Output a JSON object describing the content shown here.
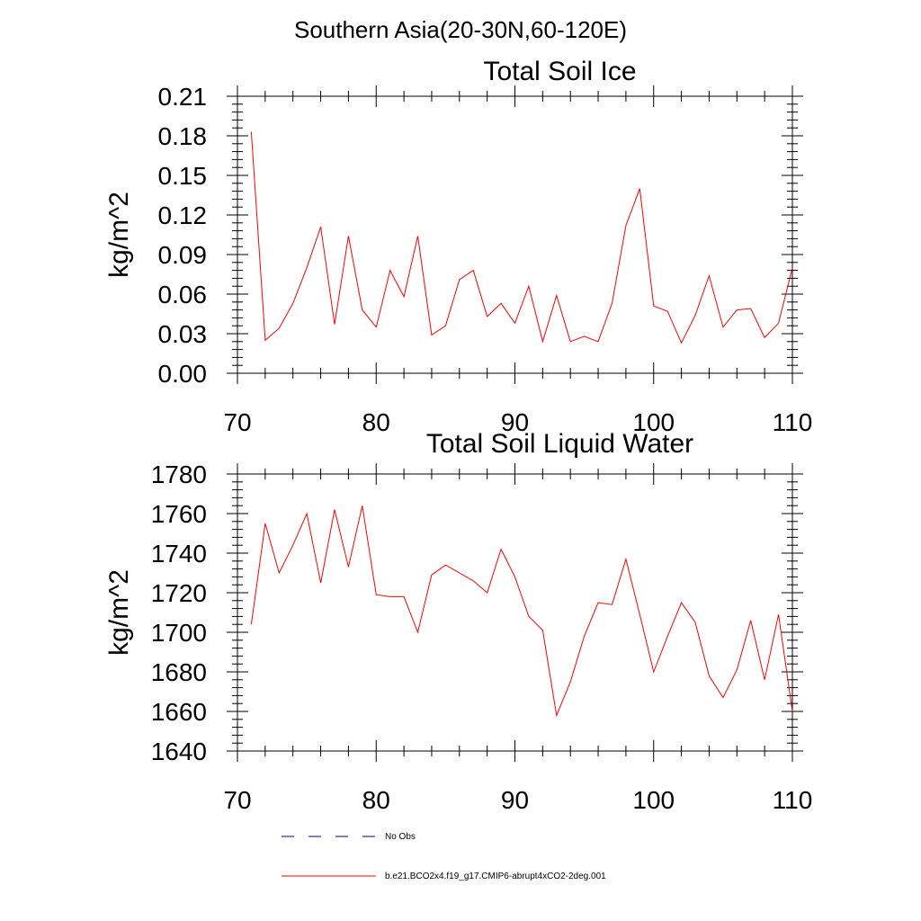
{
  "suptitle": "Southern Asia(20-30N,60-120E)",
  "colors": {
    "model": "#ff0000",
    "obs": "#000080",
    "axis": "#000000"
  },
  "legend": {
    "obs_label": "No Obs",
    "model_label": "b.e21.BCO2x4.f19_g17.CMIP6-abrupt4xCO2-2deg.001"
  },
  "chart_data": [
    {
      "type": "line",
      "title": "Total Soil Ice",
      "xlabel": "",
      "ylabel": "kg/m^2",
      "xlim": [
        70,
        110
      ],
      "ylim": [
        0,
        0.21
      ],
      "xticks": [
        70,
        80,
        90,
        100,
        110
      ],
      "xtick_labels": [
        "70",
        "80",
        "90",
        "100",
        "110"
      ],
      "yticks": [
        0,
        0.03,
        0.06,
        0.09,
        0.12,
        0.15,
        0.18,
        0.21
      ],
      "ytick_labels": [
        "0.00",
        "0.03",
        "0.06",
        "0.09",
        "0.12",
        "0.15",
        "0.18",
        "0.21"
      ],
      "series": [
        {
          "name": "b.e21.BCO2x4.f19_g17.CMIP6-abrupt4xCO2-2deg.001",
          "x": [
            71,
            72,
            73,
            74,
            75,
            76,
            77,
            78,
            79,
            80,
            81,
            82,
            83,
            84,
            85,
            86,
            87,
            88,
            89,
            90,
            91,
            92,
            93,
            94,
            95,
            96,
            97,
            98,
            99,
            100,
            101,
            102,
            103,
            104,
            105,
            106,
            107,
            108,
            109,
            110
          ],
          "values": [
            0.183,
            0.025,
            0.034,
            0.053,
            0.08,
            0.111,
            0.037,
            0.104,
            0.048,
            0.035,
            0.078,
            0.058,
            0.104,
            0.029,
            0.036,
            0.071,
            0.078,
            0.043,
            0.053,
            0.038,
            0.066,
            0.024,
            0.059,
            0.024,
            0.028,
            0.024,
            0.053,
            0.112,
            0.14,
            0.051,
            0.047,
            0.023,
            0.044,
            0.074,
            0.035,
            0.048,
            0.049,
            0.027,
            0.038,
            0.08
          ]
        }
      ]
    },
    {
      "type": "line",
      "title": "Total Soil Liquid Water",
      "xlabel": "",
      "ylabel": "kg/m^2",
      "xlim": [
        70,
        110
      ],
      "ylim": [
        1640,
        1780
      ],
      "xticks": [
        70,
        80,
        90,
        100,
        110
      ],
      "xtick_labels": [
        "70",
        "80",
        "90",
        "100",
        "110"
      ],
      "yticks": [
        1640,
        1660,
        1680,
        1700,
        1720,
        1740,
        1760,
        1780
      ],
      "ytick_labels": [
        "1640",
        "1660",
        "1680",
        "1700",
        "1720",
        "1740",
        "1760",
        "1780"
      ],
      "series": [
        {
          "name": "b.e21.BCO2x4.f19_g17.CMIP6-abrupt4xCO2-2deg.001",
          "x": [
            71,
            72,
            73,
            74,
            75,
            76,
            77,
            78,
            79,
            80,
            81,
            82,
            83,
            84,
            85,
            86,
            87,
            88,
            89,
            90,
            91,
            92,
            93,
            94,
            95,
            96,
            97,
            98,
            99,
            100,
            101,
            102,
            103,
            104,
            105,
            106,
            107,
            108,
            109,
            110
          ],
          "values": [
            1704,
            1755,
            1730,
            1744,
            1760,
            1725,
            1762,
            1733,
            1764,
            1719,
            1718,
            1718,
            1700,
            1729,
            1734,
            1730,
            1726,
            1720,
            1742,
            1728,
            1708,
            1701,
            1658,
            1675,
            1698,
            1715,
            1714,
            1737,
            1709,
            1680,
            1698,
            1715,
            1705,
            1678,
            1667,
            1681,
            1706,
            1676,
            1709,
            1660
          ]
        }
      ]
    }
  ]
}
